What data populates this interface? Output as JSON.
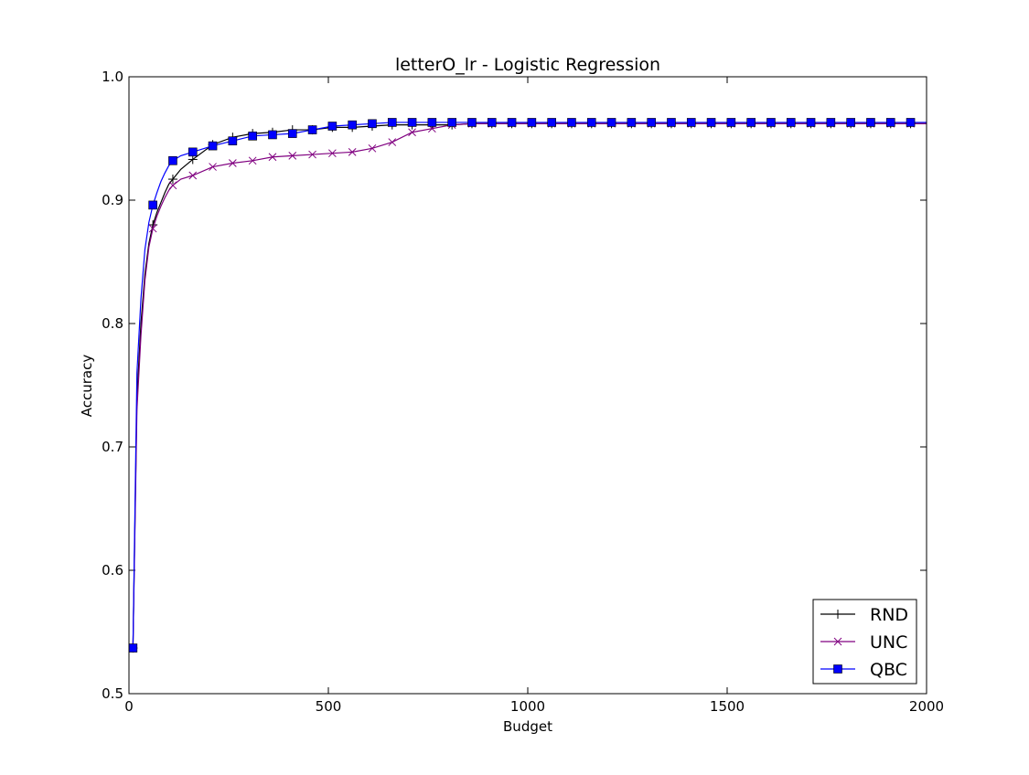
{
  "chart_data": {
    "type": "line",
    "title": "letterO_lr - Logistic Regression",
    "xlabel": "Budget",
    "ylabel": "Accuracy",
    "xlim": [
      0,
      2000
    ],
    "ylim": [
      0.5,
      1.0
    ],
    "xticks": [
      0,
      500,
      1000,
      1500,
      2000
    ],
    "yticks": [
      0.5,
      0.6,
      0.7,
      0.8,
      0.9,
      1.0
    ],
    "xtick_labels": [
      "0",
      "500",
      "1000",
      "1500",
      "2000"
    ],
    "ytick_labels": [
      "0.5",
      "0.6",
      "0.7",
      "0.8",
      "0.9",
      "1.0"
    ],
    "grid": false,
    "legend_position": "bottom-right",
    "x": [
      10,
      20,
      30,
      40,
      50,
      60,
      70,
      80,
      90,
      100,
      110,
      130,
      160,
      210,
      260,
      310,
      360,
      410,
      460,
      510,
      560,
      610,
      660,
      710,
      760,
      810,
      860,
      910,
      960,
      1010,
      1060,
      1110,
      1160,
      1210,
      1260,
      1310,
      1360,
      1410,
      1460,
      1510,
      1560,
      1610,
      1660,
      1710,
      1760,
      1810,
      1860,
      1910,
      1960,
      2000
    ],
    "series": [
      {
        "name": "RND",
        "color": "#000000",
        "marker": "plus",
        "values": [
          0.537,
          0.74,
          0.8,
          0.84,
          0.865,
          0.88,
          0.89,
          0.898,
          0.906,
          0.913,
          0.917,
          0.925,
          0.933,
          0.945,
          0.951,
          0.954,
          0.955,
          0.957,
          0.957,
          0.959,
          0.959,
          0.96,
          0.961,
          0.961,
          0.961,
          0.961,
          0.962,
          0.962,
          0.962,
          0.962,
          0.962,
          0.962,
          0.962,
          0.962,
          0.962,
          0.962,
          0.962,
          0.962,
          0.962,
          0.962,
          0.962,
          0.962,
          0.962,
          0.962,
          0.962,
          0.962,
          0.962,
          0.962,
          0.962,
          0.962
        ]
      },
      {
        "name": "UNC",
        "color": "#800080",
        "marker": "x",
        "values": [
          0.537,
          0.73,
          0.79,
          0.835,
          0.862,
          0.877,
          0.887,
          0.895,
          0.902,
          0.908,
          0.912,
          0.917,
          0.92,
          0.927,
          0.93,
          0.932,
          0.935,
          0.936,
          0.937,
          0.938,
          0.939,
          0.942,
          0.947,
          0.955,
          0.958,
          0.961,
          0.962,
          0.962,
          0.962,
          0.962,
          0.962,
          0.962,
          0.962,
          0.962,
          0.962,
          0.962,
          0.962,
          0.962,
          0.962,
          0.962,
          0.962,
          0.962,
          0.962,
          0.962,
          0.962,
          0.962,
          0.962,
          0.962,
          0.962,
          0.962
        ]
      },
      {
        "name": "QBC",
        "color": "#0000ff",
        "marker": "square",
        "values": [
          0.537,
          0.76,
          0.82,
          0.86,
          0.882,
          0.896,
          0.906,
          0.915,
          0.922,
          0.928,
          0.932,
          0.936,
          0.939,
          0.944,
          0.948,
          0.952,
          0.953,
          0.954,
          0.957,
          0.96,
          0.961,
          0.962,
          0.963,
          0.963,
          0.963,
          0.963,
          0.963,
          0.963,
          0.963,
          0.963,
          0.963,
          0.963,
          0.963,
          0.963,
          0.963,
          0.963,
          0.963,
          0.963,
          0.963,
          0.963,
          0.963,
          0.963,
          0.963,
          0.963,
          0.963,
          0.963,
          0.963,
          0.963,
          0.963,
          0.963
        ]
      }
    ]
  }
}
